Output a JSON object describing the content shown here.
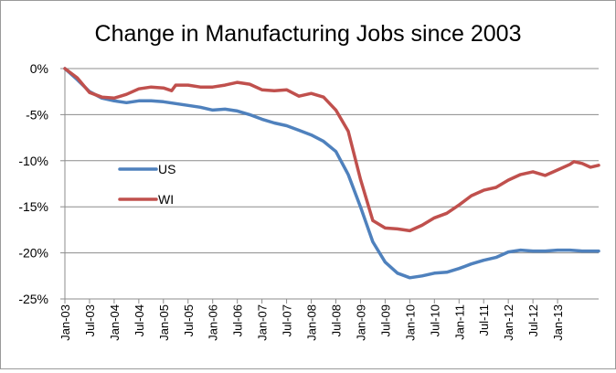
{
  "chart_data": {
    "type": "line",
    "title": "Change in Manufacturing Jobs since 2003",
    "xlabel": "",
    "ylabel": "",
    "y_unit": "%",
    "ylim": [
      -25,
      0
    ],
    "y_ticks": [
      0,
      -5,
      -10,
      -15,
      -20,
      -25
    ],
    "y_tick_labels": [
      "0%",
      "-5%",
      "-10%",
      "-15%",
      "-20%",
      "-25%"
    ],
    "x_range": [
      "2003-01",
      "2013-11"
    ],
    "x_tick_labels": [
      "Jan-03",
      "Jul-03",
      "Jan-04",
      "Jul-04",
      "Jan-05",
      "Jul-05",
      "Jan-06",
      "Jul-06",
      "Jan-07",
      "Jul-07",
      "Jan-08",
      "Jul-08",
      "Jan-09",
      "Jul-09",
      "Jan-10",
      "Jul-10",
      "Jan-11",
      "Jul-11",
      "Jan-12",
      "Jul-12",
      "Jan-13"
    ],
    "grid": "horizontal",
    "legend": "inside-left",
    "series": [
      {
        "name": "US",
        "color": "#4f81bd",
        "points": [
          [
            "2003-01",
            0
          ],
          [
            "2003-04",
            -1.2
          ],
          [
            "2003-07",
            -2.5
          ],
          [
            "2003-10",
            -3.2
          ],
          [
            "2004-01",
            -3.5
          ],
          [
            "2004-04",
            -3.7
          ],
          [
            "2004-07",
            -3.5
          ],
          [
            "2004-10",
            -3.5
          ],
          [
            "2005-01",
            -3.6
          ],
          [
            "2005-04",
            -3.8
          ],
          [
            "2005-07",
            -4.0
          ],
          [
            "2005-10",
            -4.2
          ],
          [
            "2006-01",
            -4.5
          ],
          [
            "2006-04",
            -4.4
          ],
          [
            "2006-07",
            -4.6
          ],
          [
            "2006-10",
            -5.0
          ],
          [
            "2007-01",
            -5.5
          ],
          [
            "2007-04",
            -5.9
          ],
          [
            "2007-07",
            -6.2
          ],
          [
            "2007-10",
            -6.7
          ],
          [
            "2008-01",
            -7.2
          ],
          [
            "2008-04",
            -7.9
          ],
          [
            "2008-07",
            -9.0
          ],
          [
            "2008-10",
            -11.5
          ],
          [
            "2009-01",
            -15.0
          ],
          [
            "2009-04",
            -18.8
          ],
          [
            "2009-07",
            -21.0
          ],
          [
            "2009-10",
            -22.2
          ],
          [
            "2010-01",
            -22.7
          ],
          [
            "2010-04",
            -22.5
          ],
          [
            "2010-07",
            -22.2
          ],
          [
            "2010-10",
            -22.1
          ],
          [
            "2011-01",
            -21.7
          ],
          [
            "2011-04",
            -21.2
          ],
          [
            "2011-07",
            -20.8
          ],
          [
            "2011-10",
            -20.5
          ],
          [
            "2012-01",
            -19.9
          ],
          [
            "2012-04",
            -19.7
          ],
          [
            "2012-07",
            -19.8
          ],
          [
            "2012-10",
            -19.8
          ],
          [
            "2013-01",
            -19.7
          ],
          [
            "2013-04",
            -19.7
          ],
          [
            "2013-07",
            -19.8
          ],
          [
            "2013-11",
            -19.8
          ]
        ]
      },
      {
        "name": "WI",
        "color": "#c0504d",
        "points": [
          [
            "2003-01",
            0
          ],
          [
            "2003-04",
            -1.0
          ],
          [
            "2003-07",
            -2.6
          ],
          [
            "2003-10",
            -3.1
          ],
          [
            "2004-01",
            -3.2
          ],
          [
            "2004-04",
            -2.8
          ],
          [
            "2004-07",
            -2.2
          ],
          [
            "2004-10",
            -2.0
          ],
          [
            "2005-01",
            -2.1
          ],
          [
            "2005-03",
            -2.4
          ],
          [
            "2005-04",
            -1.8
          ],
          [
            "2005-07",
            -1.8
          ],
          [
            "2005-10",
            -2.0
          ],
          [
            "2006-01",
            -2.0
          ],
          [
            "2006-04",
            -1.8
          ],
          [
            "2006-07",
            -1.5
          ],
          [
            "2006-10",
            -1.7
          ],
          [
            "2007-01",
            -2.3
          ],
          [
            "2007-04",
            -2.4
          ],
          [
            "2007-07",
            -2.3
          ],
          [
            "2007-10",
            -3.0
          ],
          [
            "2008-01",
            -2.7
          ],
          [
            "2008-04",
            -3.1
          ],
          [
            "2008-07",
            -4.5
          ],
          [
            "2008-10",
            -6.8
          ],
          [
            "2009-01",
            -12.0
          ],
          [
            "2009-04",
            -16.5
          ],
          [
            "2009-07",
            -17.3
          ],
          [
            "2009-10",
            -17.4
          ],
          [
            "2010-01",
            -17.6
          ],
          [
            "2010-04",
            -17.0
          ],
          [
            "2010-07",
            -16.2
          ],
          [
            "2010-10",
            -15.7
          ],
          [
            "2011-01",
            -14.8
          ],
          [
            "2011-04",
            -13.8
          ],
          [
            "2011-07",
            -13.2
          ],
          [
            "2011-10",
            -12.9
          ],
          [
            "2012-01",
            -12.1
          ],
          [
            "2012-04",
            -11.5
          ],
          [
            "2012-07",
            -11.2
          ],
          [
            "2012-10",
            -11.6
          ],
          [
            "2013-01",
            -11.0
          ],
          [
            "2013-04",
            -10.4
          ],
          [
            "2013-05",
            -10.1
          ],
          [
            "2013-07",
            -10.3
          ],
          [
            "2013-09",
            -10.7
          ],
          [
            "2013-11",
            -10.5
          ]
        ]
      }
    ]
  }
}
